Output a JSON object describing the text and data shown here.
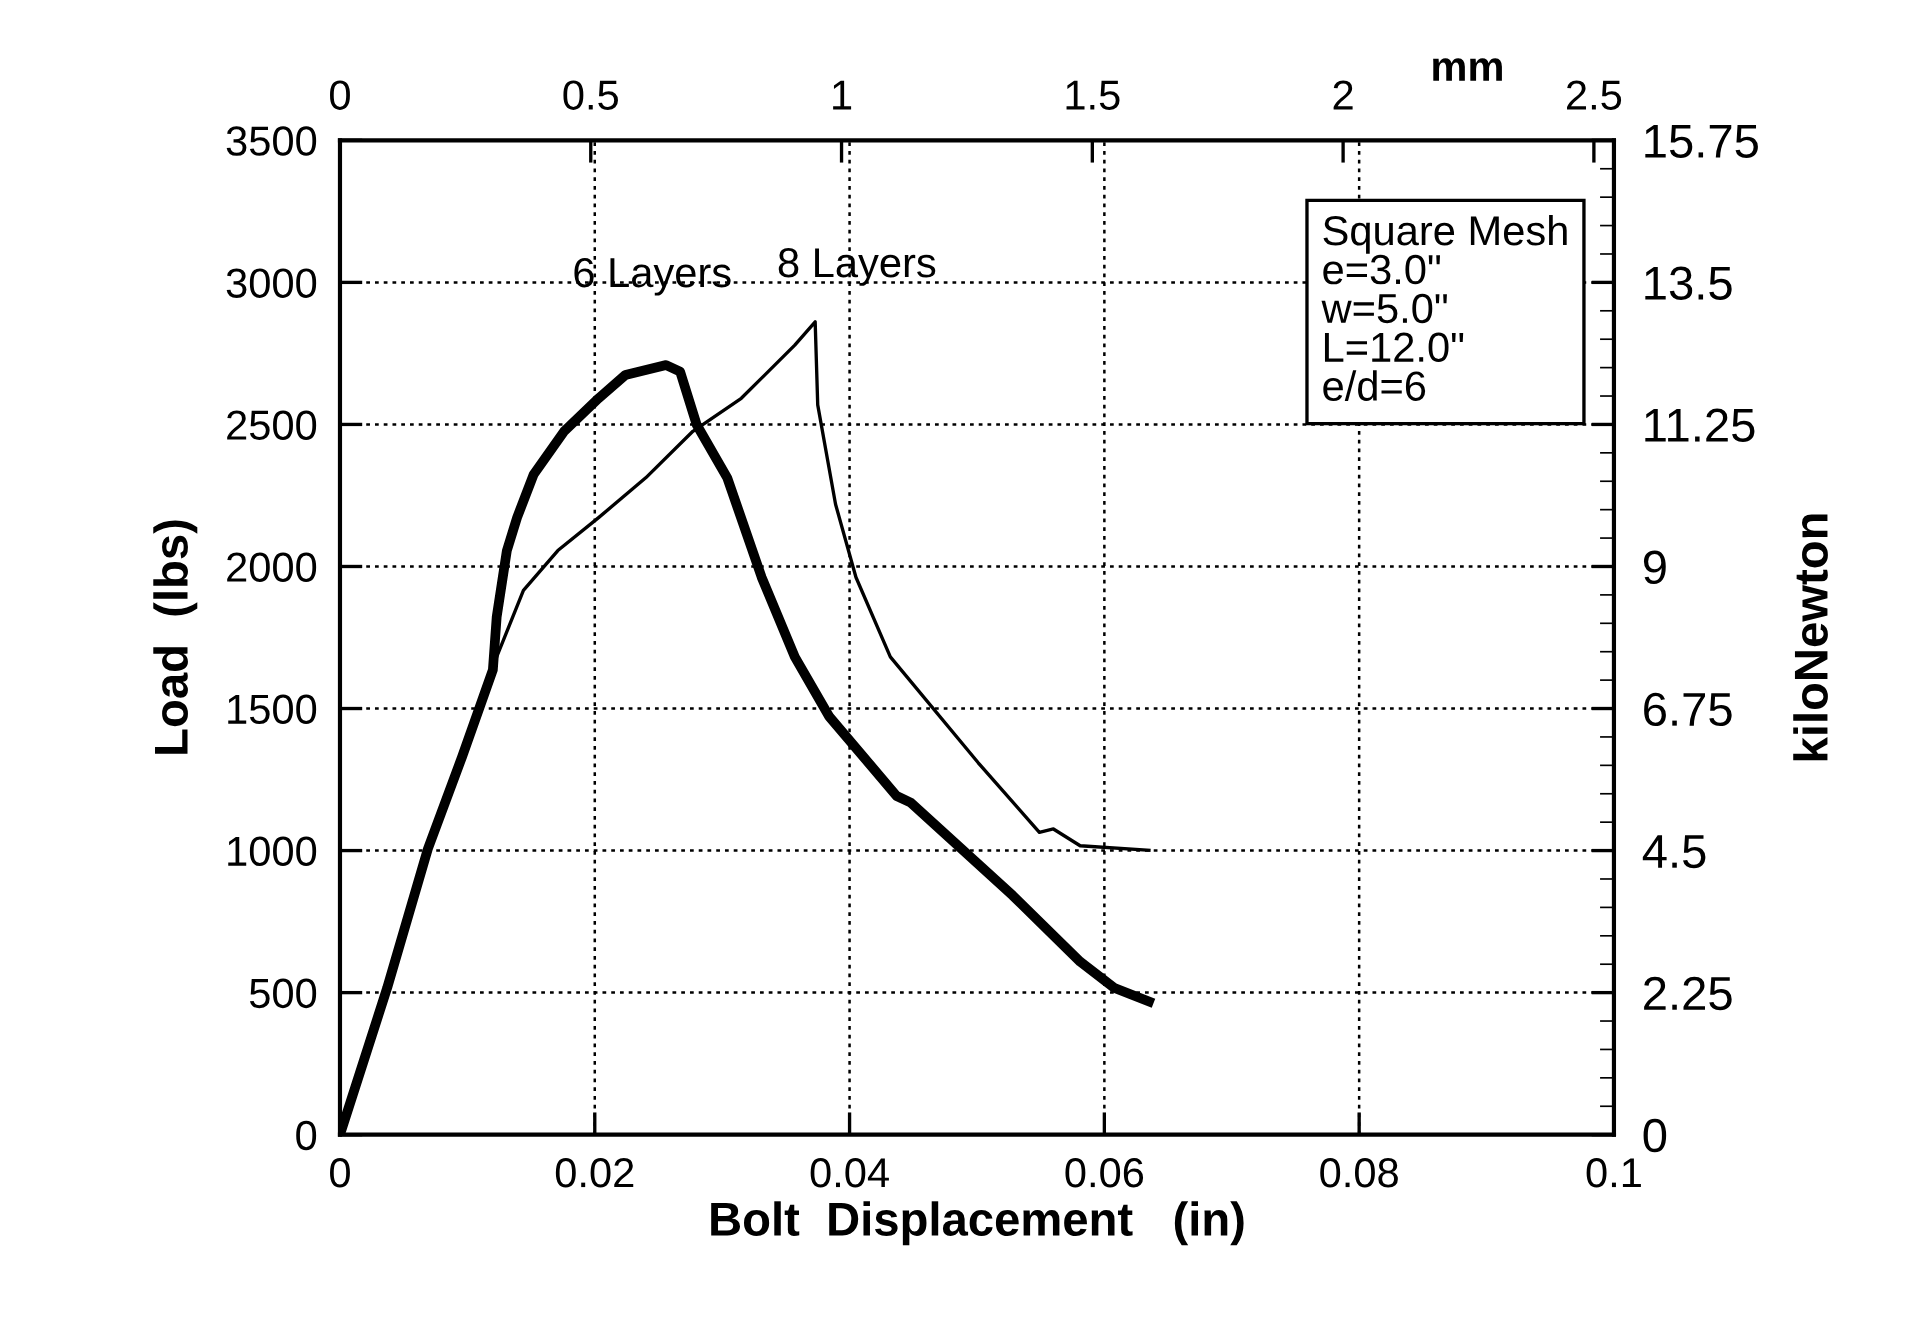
{
  "chart_data": {
    "type": "line",
    "xlabel": "Bolt  Displacement   (in)",
    "ylabel": "Load  (lbs)",
    "y2label": "kiloNewton",
    "x2label": "mm",
    "xlim": [
      0,
      0.1
    ],
    "xticks": [
      0,
      0.02,
      0.04,
      0.06,
      0.08,
      0.1
    ],
    "ylim": [
      0,
      3500
    ],
    "yticks": [
      0,
      500,
      1000,
      1500,
      2000,
      2500,
      3000,
      3500
    ],
    "y2lim": [
      0,
      15.75
    ],
    "y2ticks": [
      0,
      2.25,
      4.5,
      6.75,
      9,
      11.25,
      13.5,
      15.75
    ],
    "x2lim": [
      0,
      2.54
    ],
    "x2ticks": [
      0,
      0.5,
      1,
      1.5,
      2,
      2.5
    ],
    "grid": true,
    "line_style": "solid",
    "marker": "none",
    "annotations": [
      "Square Mesh\ne=3.0\"\nw=5.0\"\nL=12.0\"\ne/d=6"
    ],
    "series": [
      {
        "name": "6 Layers",
        "color": "#000000",
        "x": [
          0,
          0.0037,
          0.0069,
          0.0096,
          0.012,
          0.0123,
          0.0131,
          0.0139,
          0.0152,
          0.0176,
          0.0203,
          0.0224,
          0.0256,
          0.0267,
          0.028,
          0.0304,
          0.0331,
          0.0357,
          0.0384,
          0.0437,
          0.0448,
          0.0528,
          0.0581,
          0.0608,
          0.0635
        ],
        "values": [
          0,
          516,
          1006,
          1332,
          1636,
          1822,
          2056,
          2172,
          2324,
          2476,
          2592,
          2674,
          2709,
          2686,
          2499,
          2312,
          1962,
          1682,
          1472,
          1192,
          1169,
          842,
          609,
          516,
          469
        ]
      },
      {
        "name": "8 Layers",
        "color": "#000000",
        "x": [
          0,
          0.0037,
          0.0069,
          0.0096,
          0.0118,
          0.0123,
          0.0144,
          0.0171,
          0.0203,
          0.024,
          0.0277,
          0.0315,
          0.0357,
          0.0373,
          0.0375,
          0.0389,
          0.0405,
          0.0432,
          0.0501,
          0.0549,
          0.056,
          0.0581,
          0.0635
        ],
        "values": [
          0,
          516,
          1006,
          1332,
          1600,
          1682,
          1916,
          2056,
          2172,
          2312,
          2476,
          2592,
          2779,
          2861,
          2569,
          2219,
          1962,
          1682,
          1309,
          1064,
          1076,
          1017,
          1001
        ]
      }
    ]
  }
}
